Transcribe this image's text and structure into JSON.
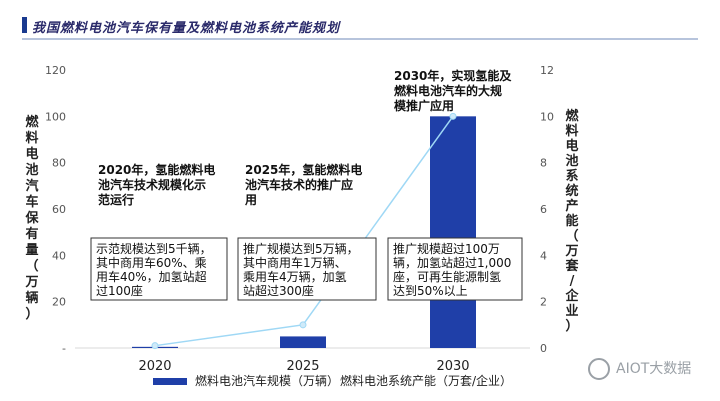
{
  "page_title": "我国燃料电池汽车保有量及燃料电池系统产能规划",
  "chart_data": {
    "type": "bar",
    "categories": [
      "2020",
      "2025",
      "2030"
    ],
    "series": [
      {
        "name": "燃料电池汽车规模（万辆）",
        "type": "bar",
        "axis": "left",
        "values": [
          0.5,
          5,
          100
        ]
      },
      {
        "name": "燃料电池系统产能（万套/企业）",
        "type": "line",
        "axis": "right",
        "values": [
          0.1,
          1,
          10
        ]
      }
    ],
    "y_left": {
      "ticks": [
        "-",
        "20",
        "40",
        "60",
        "80",
        "100",
        "120"
      ],
      "range": [
        0,
        120
      ],
      "label_chars": [
        "燃",
        "料",
        "电",
        "池",
        "汽",
        "车",
        "保",
        "有",
        "量",
        "（",
        "万",
        "辆",
        "）"
      ]
    },
    "y_right": {
      "ticks": [
        "0",
        "2",
        "4",
        "6",
        "8",
        "10",
        "12"
      ],
      "range": [
        0,
        12
      ],
      "label_chars": [
        "燃",
        "料",
        "电",
        "池",
        "系",
        "统",
        "产",
        "能",
        "（",
        "万",
        "套",
        "/",
        "企",
        "业",
        "）"
      ]
    },
    "colors": {
      "bar": "#1f3fa8",
      "line": "#9fd8f5",
      "marker": "#cfeaf9"
    },
    "annotations": [
      {
        "title_lines": [
          "2020年，氢能燃料电",
          "池汽车技术规模化示",
          "范运行"
        ],
        "box_lines": [
          "示范规模达到5千辆，",
          "其中商用车60%、乘",
          "用车40%，加氢站超",
          "过100座"
        ]
      },
      {
        "title_lines": [
          "2025年，氢能燃料电",
          "池汽车技术的推广应",
          "用"
        ],
        "box_lines": [
          "推广规模达到5万辆，",
          "其中商用车1万辆、",
          "乘用车4万辆，加氢",
          "站超过300座"
        ]
      },
      {
        "title_lines": [
          "2030年，实现氢能及",
          "燃料电池汽车的大规",
          "模推广应用"
        ],
        "box_lines": [
          "推广规模超过100万",
          "辆，加氢站超过1,000",
          "座，可再生能源制氢",
          "达到50%以上"
        ]
      }
    ]
  },
  "watermark": "AIOT大数据"
}
